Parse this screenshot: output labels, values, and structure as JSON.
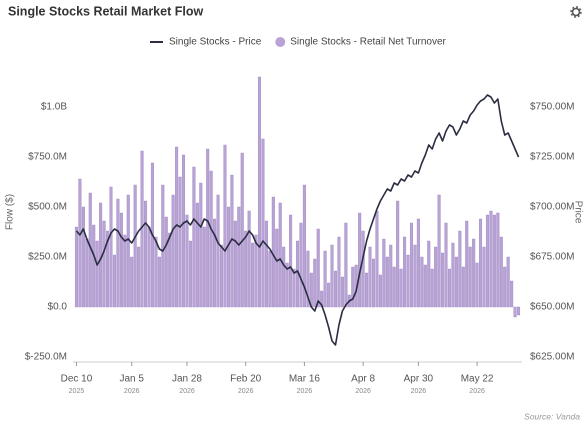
{
  "chart_data": {
    "type": "combo",
    "title": "Single Stocks Retail Market Flow",
    "y_label": "Flow ($)",
    "y2_label": "Price",
    "source": "Source: Vanda",
    "ylim": [
      -275000000,
      1225000000
    ],
    "yticks": [
      {
        "value": -250000000,
        "label": "$-250.0M"
      },
      {
        "value": 0,
        "label": "$0.0"
      },
      {
        "value": 250000000,
        "label": "$250.0M"
      },
      {
        "value": 500000000,
        "label": "$500.0M"
      },
      {
        "value": 750000000,
        "label": "$750.0M"
      },
      {
        "value": 1000000000,
        "label": "$1.0B"
      }
    ],
    "y2lim": [
      622.5,
      772.5
    ],
    "y2ticks": [
      {
        "value": 625,
        "label": "$625.00M"
      },
      {
        "value": 650,
        "label": "$650.00M"
      },
      {
        "value": 675,
        "label": "$675.00M"
      },
      {
        "value": 700,
        "label": "$700.00M"
      },
      {
        "value": 725,
        "label": "$725.00M"
      },
      {
        "value": 750,
        "label": "$750.00M"
      }
    ],
    "xticks": [
      {
        "value": 0,
        "label": "Dec 10",
        "year": "2025"
      },
      {
        "value": 16,
        "label": "Jan 5",
        "year": "2026"
      },
      {
        "value": 32,
        "label": "Jan 28",
        "year": "2026"
      },
      {
        "value": 49,
        "label": "Feb 20",
        "year": "2026"
      },
      {
        "value": 66,
        "label": "Mar 16",
        "year": "2026"
      },
      {
        "value": 83,
        "label": "Apr 8",
        "year": "2026"
      },
      {
        "value": 99,
        "label": "Apr 30",
        "year": "2026"
      },
      {
        "value": 116,
        "label": "May 22",
        "year": "2026"
      }
    ],
    "xlim": [
      -1,
      129
    ],
    "series": [
      {
        "name": "Single Stocks - Price",
        "type": "line",
        "axis": "y2",
        "color": "#2b2d42",
        "values": [
          688,
          686,
          689,
          684,
          680,
          676,
          671,
          674,
          678,
          683,
          687,
          689,
          688,
          685,
          683,
          684,
          682,
          685,
          688,
          690,
          692,
          690,
          686,
          683,
          679,
          678,
          681,
          685,
          689,
          691,
          690,
          692,
          693,
          691,
          694,
          692,
          690,
          694,
          693,
          689,
          686,
          682,
          680,
          678,
          681,
          684,
          683,
          681,
          683,
          685,
          688,
          686,
          682,
          680,
          683,
          681,
          679,
          676,
          673,
          674,
          671,
          669,
          670,
          667,
          668,
          664,
          660,
          655,
          650,
          648,
          653,
          651,
          646,
          640,
          633,
          631,
          641,
          648,
          651,
          653,
          654,
          658,
          667,
          675,
          683,
          689,
          694,
          699,
          703,
          706,
          709,
          708,
          712,
          711,
          714,
          713,
          716,
          715,
          718,
          717,
          722,
          726,
          731,
          729,
          734,
          737,
          733,
          738,
          741,
          740,
          736,
          739,
          743,
          742,
          746,
          748,
          751,
          753,
          754,
          756,
          755,
          752,
          754,
          743,
          736,
          737,
          733,
          729,
          725
        ]
      },
      {
        "name": "Single Stocks - Retail Net Turnover",
        "type": "bar",
        "color": "#b9a3d6",
        "values": [
          400000000.0,
          640000000.0,
          500000000.0,
          340000000.0,
          570000000.0,
          410000000.0,
          330000000.0,
          520000000.0,
          430000000.0,
          380000000.0,
          600000000.0,
          260000000.0,
          540000000.0,
          470000000.0,
          360000000.0,
          560000000.0,
          250000000.0,
          610000000.0,
          300000000.0,
          780000000.0,
          530000000.0,
          400000000.0,
          720000000.0,
          350000000.0,
          250000000.0,
          610000000.0,
          450000000.0,
          370000000.0,
          560000000.0,
          800000000.0,
          650000000.0,
          760000000.0,
          460000000.0,
          330000000.0,
          700000000.0,
          520000000.0,
          620000000.0,
          400000000.0,
          790000000.0,
          680000000.0,
          440000000.0,
          560000000.0,
          310000000.0,
          810000000.0,
          500000000.0,
          660000000.0,
          430000000.0,
          500000000.0,
          770000000.0,
          380000000.0,
          480000000.0,
          320000000.0,
          360000000.0,
          1150000000.0,
          840000000.0,
          430000000.0,
          280000000.0,
          550000000.0,
          390000000.0,
          520000000.0,
          300000000.0,
          220000000.0,
          460000000.0,
          190000000.0,
          330000000.0,
          420000000.0,
          610000000.0,
          280000000.0,
          170000000.0,
          240000000.0,
          390000000.0,
          80000000.0,
          280000000.0,
          120000000.0,
          310000000.0,
          180000000.0,
          350000000.0,
          150000000.0,
          420000000.0,
          60000000.0,
          200000000.0,
          210000000.0,
          470000000.0,
          380000000.0,
          170000000.0,
          300000000.0,
          240000000.0,
          480000000.0,
          160000000.0,
          340000000.0,
          250000000.0,
          310000000.0,
          200000000.0,
          530000000.0,
          190000000.0,
          350000000.0,
          260000000.0,
          420000000.0,
          310000000.0,
          440000000.0,
          250000000.0,
          210000000.0,
          330000000.0,
          190000000.0,
          300000000.0,
          560000000.0,
          270000000.0,
          420000000.0,
          190000000.0,
          320000000.0,
          250000000.0,
          380000000.0,
          200000000.0,
          430000000.0,
          300000000.0,
          340000000.0,
          220000000.0,
          440000000.0,
          300000000.0,
          460000000.0,
          480000000.0,
          460000000.0,
          470000000.0,
          350000000.0,
          200000000.0,
          250000000.0,
          130000000.0,
          -50000000.0,
          -40000000.0
        ]
      }
    ]
  }
}
